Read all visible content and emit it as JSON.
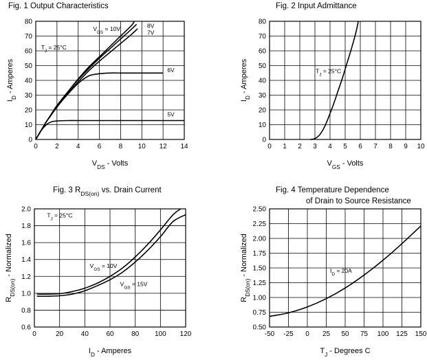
{
  "chart_data": [
    {
      "id": "fig1",
      "type": "line",
      "title_lines": [
        "Fig. 1  Output Characteristics"
      ],
      "xlabel": {
        "main": "V",
        "sub": "DS",
        "rest": " - Volts"
      },
      "ylabel": {
        "main": "I",
        "sub": "D",
        "rest": " - Amperes"
      },
      "xlim": [
        0,
        14
      ],
      "ylim": [
        0,
        80
      ],
      "xticks": [
        0,
        2,
        4,
        6,
        8,
        10,
        12,
        14
      ],
      "yticks": [
        0,
        10,
        20,
        30,
        40,
        50,
        60,
        70,
        80
      ],
      "xtick_labels": [
        "0",
        "2",
        "4",
        "6",
        "8",
        "10",
        "12",
        "14"
      ],
      "ytick_labels": [
        "0",
        "10",
        "20",
        "30",
        "40",
        "50",
        "60",
        "70",
        "80"
      ],
      "grid": true,
      "annotations": [
        {
          "main": "V",
          "sub": "GS",
          "rest": " = 10V",
          "x": 5.4,
          "y": 73.5
        },
        {
          "main": "T",
          "sub": "J",
          "rest": " = 25°C",
          "x": 0.5,
          "y": 61
        },
        {
          "main": "8V",
          "sub": "",
          "rest": "",
          "x": 10.5,
          "y": 75.5
        },
        {
          "main": "7V",
          "sub": "",
          "rest": "",
          "x": 10.5,
          "y": 71
        },
        {
          "main": "6V",
          "sub": "",
          "rest": "",
          "x": 12.4,
          "y": 45.5
        },
        {
          "main": "5V",
          "sub": "",
          "rest": "",
          "x": 12.4,
          "y": 15.5
        }
      ],
      "series": [
        {
          "name": "VGS = 10V",
          "x": [
            0,
            0.5,
            1,
            1.5,
            2,
            3,
            4,
            5,
            6,
            7,
            8,
            9,
            9.3
          ],
          "y": [
            0,
            6,
            12,
            17.5,
            23,
            32,
            41,
            49,
            56,
            63,
            70,
            77,
            80
          ]
        },
        {
          "name": "8V",
          "x": [
            0,
            0.5,
            1,
            1.5,
            2,
            3,
            4,
            5,
            6,
            7,
            8,
            9,
            9.5
          ],
          "y": [
            0,
            6,
            12,
            17.5,
            23,
            32,
            40.5,
            48,
            55,
            61.5,
            68,
            74.5,
            78
          ]
        },
        {
          "name": "7V",
          "x": [
            0,
            0.5,
            1,
            1.5,
            2,
            3,
            4,
            5,
            6,
            7,
            8,
            9,
            9.6
          ],
          "y": [
            0,
            6,
            12,
            17,
            22,
            31,
            39,
            46.5,
            53,
            59,
            65,
            71,
            75
          ]
        },
        {
          "name": "6V",
          "x": [
            0,
            0.5,
            1,
            1.5,
            2,
            3,
            4,
            5,
            6,
            7,
            8,
            10,
            12
          ],
          "y": [
            0,
            6,
            12,
            17,
            22,
            30.5,
            38,
            43,
            44.5,
            45,
            45,
            45,
            45
          ]
        },
        {
          "name": "5V",
          "x": [
            0,
            0.5,
            1,
            1.5,
            2,
            3,
            4,
            6,
            8,
            10,
            14
          ],
          "y": [
            0,
            6,
            10,
            12,
            12.5,
            12.8,
            12.8,
            12.8,
            12.8,
            12.8,
            12.8
          ]
        }
      ]
    },
    {
      "id": "fig2",
      "type": "line",
      "title_lines": [
        "Fig. 2   Input Admittance"
      ],
      "xlabel": {
        "main": "V",
        "sub": "GS",
        "rest": " - Volts"
      },
      "ylabel": {
        "main": "I",
        "sub": "D",
        "rest": " - Amperes"
      },
      "xlim": [
        0,
        10
      ],
      "ylim": [
        0,
        80
      ],
      "xticks": [
        0,
        1,
        2,
        3,
        4,
        5,
        6,
        7,
        8,
        9,
        10
      ],
      "yticks": [
        0,
        10,
        20,
        30,
        40,
        50,
        60,
        70,
        80
      ],
      "xtick_labels": [
        "0",
        "1",
        "2",
        "3",
        "4",
        "5",
        "6",
        "7",
        "8",
        "9",
        "10"
      ],
      "ytick_labels": [
        "0",
        "10",
        "20",
        "30",
        "40",
        "50",
        "60",
        "70",
        "80"
      ],
      "grid": true,
      "annotations": [
        {
          "main": "T",
          "sub": "J",
          "rest": " = 25°C",
          "x": 3.05,
          "y": 45
        }
      ],
      "series": [
        {
          "name": "TJ = 25°C",
          "x": [
            2.7,
            2.9,
            3.1,
            3.3,
            3.5,
            3.7,
            3.9,
            4.2,
            4.5,
            4.8,
            5.1,
            5.4,
            5.7,
            5.87
          ],
          "y": [
            0,
            0.3,
            1.2,
            3,
            6,
            10,
            15,
            23,
            32,
            41,
            51,
            61,
            72,
            80
          ]
        }
      ]
    },
    {
      "id": "fig3",
      "type": "line",
      "title_lines": [
        "Fig. 3  R_DS(on) vs. Drain Current"
      ],
      "title_parts": {
        "pre": "Fig. 3  R",
        "sub": "DS(on)",
        "post": " vs. Drain Current"
      },
      "xlabel": {
        "main": "I",
        "sub": "D",
        "rest": " - Amperes"
      },
      "ylabel": {
        "main": "R",
        "sub": "DS(on)",
        "rest": " - Normalized"
      },
      "xlim": [
        0,
        120
      ],
      "ylim": [
        0.6,
        2.0
      ],
      "xticks": [
        0,
        20,
        40,
        60,
        80,
        100,
        120
      ],
      "yticks": [
        0.6,
        0.8,
        1.0,
        1.2,
        1.4,
        1.6,
        1.8,
        2.0
      ],
      "xtick_labels": [
        "0",
        "20",
        "40",
        "60",
        "80",
        "100",
        "120"
      ],
      "ytick_labels": [
        "0.6",
        "0.8",
        "1.0",
        "1.2",
        "1.4",
        "1.6",
        "1.8",
        "2.0"
      ],
      "grid": true,
      "annotations": [
        {
          "main": "T",
          "sub": "J",
          "rest": " = 25°C",
          "x": 10,
          "y": 1.9
        },
        {
          "main": "V",
          "sub": "GS",
          "rest": " = 10V",
          "x": 44,
          "y": 1.3
        },
        {
          "main": "V",
          "sub": "GS",
          "rest": " = 15V",
          "x": 68,
          "y": 1.085
        }
      ],
      "series": [
        {
          "name": "VGS = 10V",
          "x": [
            2,
            10,
            20,
            30,
            40,
            50,
            60,
            70,
            80,
            90,
            100,
            110,
            116
          ],
          "y": [
            0.99,
            0.99,
            0.995,
            1.02,
            1.06,
            1.12,
            1.2,
            1.3,
            1.43,
            1.58,
            1.75,
            1.93,
            2.0
          ]
        },
        {
          "name": "VGS = 15V",
          "x": [
            2,
            10,
            20,
            30,
            40,
            50,
            60,
            70,
            80,
            90,
            100,
            110,
            120
          ],
          "y": [
            0.965,
            0.965,
            0.97,
            0.99,
            1.03,
            1.09,
            1.16,
            1.25,
            1.37,
            1.51,
            1.67,
            1.85,
            1.93
          ]
        }
      ]
    },
    {
      "id": "fig4",
      "type": "line",
      "title_lines": [
        "Fig. 4    Temperature Dependence",
        "of Drain to Source Resistance"
      ],
      "xlabel": {
        "main": "T",
        "sub": "J",
        "rest": " - Degrees C"
      },
      "ylabel": {
        "main": "R",
        "sub": "DS(on)",
        "rest": " - Normalized"
      },
      "xlim": [
        -50,
        150
      ],
      "ylim": [
        0.5,
        2.5
      ],
      "xticks": [
        -50,
        -25,
        0,
        25,
        50,
        75,
        100,
        125,
        150
      ],
      "yticks": [
        0.5,
        0.75,
        1.0,
        1.25,
        1.5,
        1.75,
        2.0,
        2.25,
        2.5
      ],
      "xtick_labels": [
        "-50",
        "-25",
        "0",
        "25",
        "50",
        "75",
        "100",
        "125",
        "150"
      ],
      "ytick_labels": [
        "0.50",
        "0.75",
        "1.00",
        "1.25",
        "1.50",
        "1.75",
        "2.00",
        "2.25",
        "2.50"
      ],
      "grid": true,
      "annotations": [
        {
          "main": "I",
          "sub": "D",
          "rest": " = 20A",
          "x": 30,
          "y": 1.42
        }
      ],
      "series": [
        {
          "name": "ID = 20A",
          "x": [
            -50,
            -25,
            0,
            25,
            50,
            75,
            100,
            125,
            150
          ],
          "y": [
            0.68,
            0.74,
            0.84,
            0.98,
            1.16,
            1.38,
            1.63,
            1.91,
            2.21
          ]
        }
      ]
    }
  ]
}
